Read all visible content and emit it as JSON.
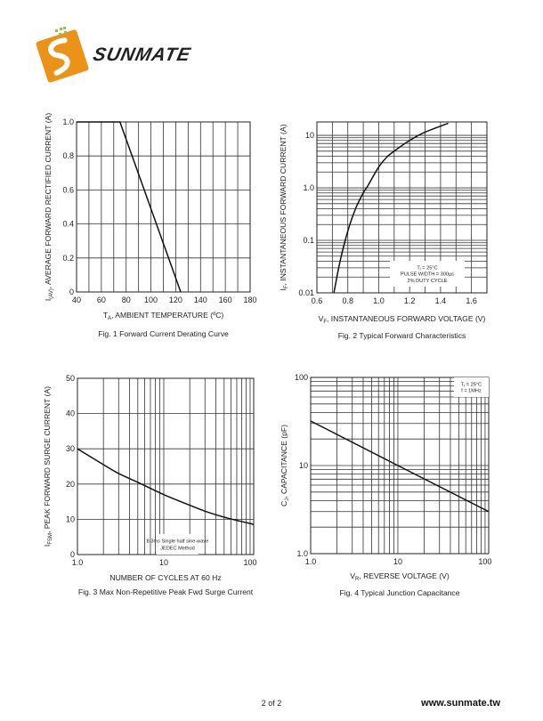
{
  "header": {
    "logo_text": "SUNMATE",
    "brand_color": "#f0a020"
  },
  "footer": {
    "page": "2 of 2",
    "url": "www.sunmate.tw"
  },
  "chart_data": [
    {
      "type": "line",
      "caption": "Fig. 1 Forward Current Derating Curve",
      "xlabel": {
        "sym": "T",
        "sub": "A",
        "rest": ", AMBIENT TEMPERATURE (ºC)"
      },
      "ylabel": {
        "sym": "I",
        "sub": "(AV)",
        "rest": ", AVERAGE FORWARD RECTIFIED CURRENT (A)"
      },
      "x_scale": "linear",
      "y_scale": "linear",
      "xlim": [
        40,
        180
      ],
      "ylim": [
        0,
        1.0
      ],
      "xticks": [
        40,
        60,
        80,
        100,
        120,
        140,
        160,
        180
      ],
      "xtick_labels": [
        "40",
        "60",
        "80",
        "100",
        "120",
        "140",
        "160",
        "180"
      ],
      "yticks": [
        0,
        0.2,
        0.4,
        0.6,
        0.8,
        1.0
      ],
      "ytick_labels": [
        "0",
        "0.2",
        "0.4",
        "0.6",
        "0.8",
        "1.0"
      ],
      "grid": true,
      "x_grid_step": 10,
      "y_grid_step": 0.2,
      "series": [
        {
          "x": [
            40,
            75,
            124
          ],
          "y": [
            1.0,
            1.0,
            0
          ]
        }
      ],
      "annotations": []
    },
    {
      "type": "line",
      "caption": "Fig. 2 Typical Forward Characteristics",
      "xlabel": {
        "sym": "V",
        "sub": "F",
        "rest": ", INSTANTANEOUS FORWARD VOLTAGE (V)"
      },
      "ylabel": {
        "sym": "I",
        "sub": "F",
        "rest": ", INSTANTANEOUS FORWARD CURRENT (A)"
      },
      "x_scale": "linear",
      "y_scale": "log",
      "xlim": [
        0.6,
        1.7
      ],
      "ylim": [
        0.01,
        18
      ],
      "xticks": [
        0.6,
        0.8,
        1.0,
        1.2,
        1.4,
        1.6
      ],
      "xtick_labels": [
        "0.6",
        "0.8",
        "1.0",
        "1.2",
        "1.4",
        "1.6"
      ],
      "yticks": [
        0.01,
        0.1,
        1.0,
        10
      ],
      "ytick_labels": [
        "0.01",
        "0.1",
        "1.0",
        "10"
      ],
      "grid": true,
      "x_grid_step": 0.1,
      "series": [
        {
          "x": [
            0.71,
            0.75,
            0.8,
            0.85,
            0.9,
            0.93,
            1.0,
            1.05,
            1.1,
            1.2,
            1.3,
            1.45
          ],
          "y": [
            0.01,
            0.04,
            0.15,
            0.4,
            0.8,
            1.1,
            2.5,
            3.8,
            5.0,
            8.0,
            11.5,
            17
          ]
        }
      ],
      "annotations": [
        "Tⱼ = 25°C",
        "PULSE WIDTH = 300µs",
        "2% DUTY CYCLE"
      ]
    },
    {
      "type": "line",
      "caption": "Fig. 3  Max Non-Repetitive Peak Fwd Surge Current",
      "xlabel": {
        "sym": "",
        "sub": "",
        "rest": "NUMBER OF CYCLES AT 60 Hz"
      },
      "ylabel": {
        "sym": "I",
        "sub": "FSM",
        "rest": ", PEAK FORWARD SURGE CURRENT (A)"
      },
      "x_scale": "log",
      "y_scale": "linear",
      "xlim": [
        1,
        110
      ],
      "ylim": [
        0,
        50
      ],
      "xticks": [
        1,
        10,
        100
      ],
      "xtick_labels": [
        "1.0",
        "10",
        "100"
      ],
      "yticks": [
        0,
        10,
        20,
        30,
        40,
        50
      ],
      "ytick_labels": [
        "0",
        "10",
        "20",
        "30",
        "40",
        "50"
      ],
      "grid": true,
      "y_grid_step": 10,
      "series": [
        {
          "x": [
            1,
            2,
            3,
            5,
            10,
            20,
            30,
            50,
            70,
            100,
            110
          ],
          "y": [
            30,
            25.5,
            23,
            20.5,
            17,
            14,
            12.3,
            10.6,
            9.7,
            8.8,
            8.5
          ]
        }
      ],
      "annotations": [
        "8.3ms Single half sine-wave",
        "JEDEC Method"
      ]
    },
    {
      "type": "line",
      "caption": "Fig. 4 Typical Junction Capacitance",
      "xlabel": {
        "sym": "V",
        "sub": "R",
        "rest": ", REVERSE VOLTAGE (V)"
      },
      "ylabel": {
        "sym": "C",
        "sub": "J",
        "rest": ", CAPACITANCE (pF)"
      },
      "x_scale": "log",
      "y_scale": "log",
      "xlim": [
        1,
        110
      ],
      "ylim": [
        1.0,
        100
      ],
      "xticks": [
        1,
        10,
        100
      ],
      "xtick_labels": [
        "1.0",
        "10",
        "100"
      ],
      "yticks": [
        1,
        10,
        100
      ],
      "ytick_labels": [
        "1.0",
        "10",
        "100"
      ],
      "grid": true,
      "series": [
        {
          "x": [
            1,
            10,
            110
          ],
          "y": [
            32,
            10,
            3
          ]
        }
      ],
      "annotations": [
        "Tⱼ = 25°C",
        "f = 1MHz"
      ]
    }
  ]
}
